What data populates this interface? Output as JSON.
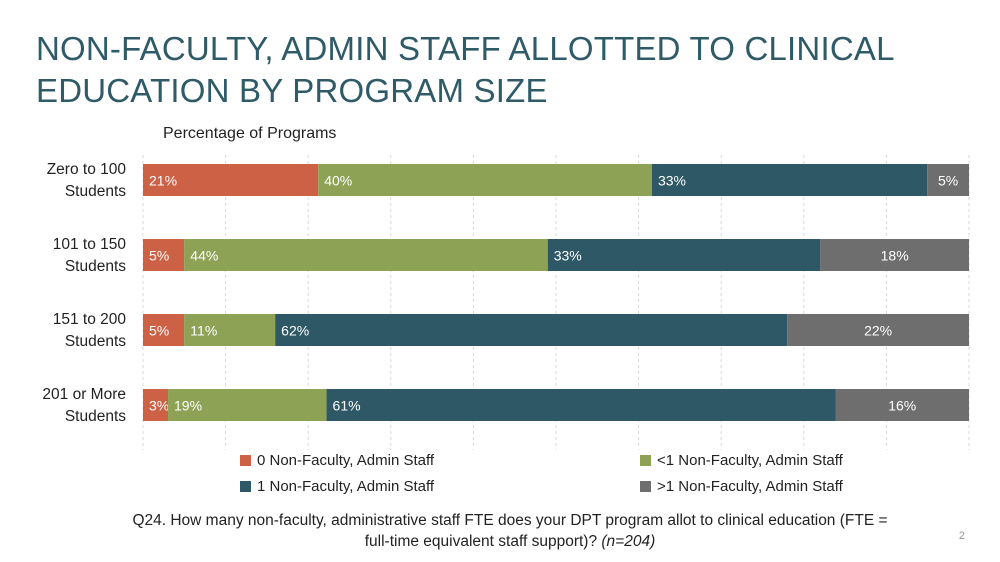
{
  "title": "NON-FACULTY, ADMIN STAFF ALLOTTED TO CLINICAL EDUCATION BY PROGRAM SIZE",
  "subtitle": "Percentage of Programs",
  "question": {
    "main": "Q24. How many non-faculty, administrative staff FTE does your DPT program allot to clinical education (FTE = full-time equivalent staff support)?",
    "n": "(n=204)"
  },
  "page_number": "2",
  "colors": {
    "zero": "#cc6146",
    "lt1": "#8ea256",
    "one": "#2e5866",
    "gt1": "#6e6e6e",
    "title": "#2f5a67"
  },
  "chart_data": {
    "type": "bar",
    "orientation": "horizontal",
    "stacked": true,
    "title": "NON-FACULTY, ADMIN STAFF ALLOTTED TO CLINICAL EDUCATION BY PROGRAM SIZE",
    "xlabel": "Percentage of Programs",
    "ylabel": "",
    "xlim": [
      0,
      100
    ],
    "categories": [
      [
        "Zero to 100",
        "Students"
      ],
      [
        "101 to 150",
        "Students"
      ],
      [
        "151 to 200",
        "Students"
      ],
      [
        "201 or More",
        "Students"
      ]
    ],
    "series": [
      {
        "name": "0 Non-Faculty, Admin Staff",
        "color": "#cc6146",
        "values": [
          21,
          5,
          5,
          3
        ]
      },
      {
        "name": "<1 Non-Faculty, Admin Staff",
        "color": "#8ea256",
        "values": [
          40,
          44,
          11,
          19
        ]
      },
      {
        "name": "1 Non-Faculty, Admin Staff",
        "color": "#2e5866",
        "values": [
          33,
          33,
          62,
          61
        ]
      },
      {
        "name": ">1 Non-Faculty, Admin Staff",
        "color": "#6e6e6e",
        "values": [
          5,
          18,
          22,
          16
        ]
      }
    ],
    "data_labels": [
      [
        "21%",
        "40%",
        "33%",
        "5%"
      ],
      [
        "5%",
        "44%",
        "33%",
        "18%"
      ],
      [
        "5%",
        "11%",
        "62%",
        "22%"
      ],
      [
        "3%",
        "19%",
        "61%",
        "16%"
      ]
    ],
    "legend": {
      "position": "bottom",
      "items": [
        "0 Non-Faculty, Admin Staff",
        "<1 Non-Faculty, Admin Staff",
        "1 Non-Faculty, Admin Staff",
        ">1 Non-Faculty, Admin Staff"
      ]
    },
    "gridlines": "vertical"
  }
}
